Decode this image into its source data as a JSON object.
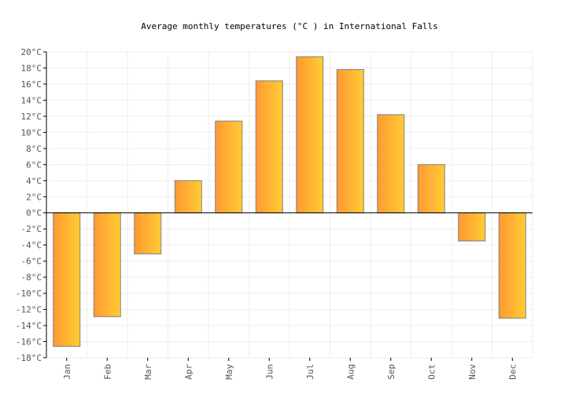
{
  "chart_data": {
    "type": "bar",
    "title": "Average monthly temperatures (°C ) in International Falls",
    "categories": [
      "Jan",
      "Feb",
      "Mar",
      "Apr",
      "May",
      "Jun",
      "Jul",
      "Aug",
      "Sep",
      "Oct",
      "Nov",
      "Dec"
    ],
    "values": [
      -16.6,
      -12.9,
      -5.1,
      4.0,
      11.4,
      16.4,
      19.4,
      17.8,
      12.2,
      6.0,
      -3.5,
      -13.1
    ],
    "unit": "°C",
    "ylim": [
      -18,
      20
    ],
    "yticks": [
      20,
      18,
      16,
      14,
      12,
      10,
      8,
      6,
      4,
      2,
      0,
      -2,
      -4,
      -6,
      -8,
      -10,
      -12,
      -14,
      -16,
      -18
    ],
    "grid": true,
    "colors": {
      "bar_start": "#FF9933",
      "bar_end": "#FFCC33",
      "bar_border": "#808080",
      "grid": "#EEEEEE"
    }
  }
}
